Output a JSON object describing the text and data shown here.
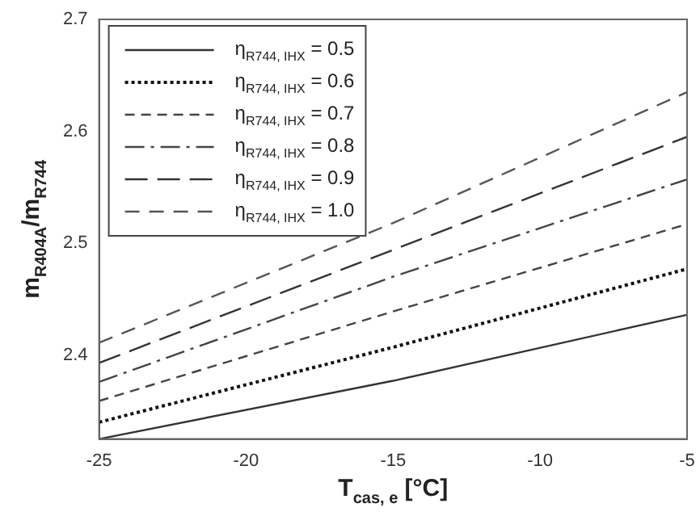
{
  "chart_data": {
    "type": "line",
    "xlabel": "T$_{cas, e}$ [°C]",
    "ylabel": "m$_{R404A}$/m$_{R744}$",
    "x": [
      -25,
      -15,
      -5
    ],
    "xlim": [
      -25,
      -5
    ],
    "xticks": [
      -25,
      -20,
      -15,
      -10,
      -5
    ],
    "ylim": [
      2.325,
      2.7
    ],
    "yticks": [
      2.4,
      2.5,
      2.6,
      2.7
    ],
    "grid": false,
    "legend": "top left",
    "marker": "none",
    "series": [
      {
        "name": "η$_{R744, IHX}$ = 0.5",
        "color": "#333333",
        "line_style": "solid",
        "values": [
          2.325,
          2.377,
          2.436
        ]
      },
      {
        "name": "η$_{R744, IHX}$ = 0.6",
        "color": "#111111",
        "line_style": "dotted",
        "values": [
          2.34,
          2.407,
          2.477
        ]
      },
      {
        "name": "η$_{R744, IHX}$ = 0.7",
        "color": "#444444",
        "line_style": "dashed",
        "values": [
          2.359,
          2.439,
          2.517
        ]
      },
      {
        "name": "η$_{R744, IHX}$ = 0.8",
        "color": "#444444",
        "line_style": "dashed",
        "values": [
          2.376,
          2.47,
          2.557
        ]
      },
      {
        "name": "η$_{R744, IHX}$ = 0.9",
        "color": "#333333",
        "line_style": "dashed",
        "values": [
          2.393,
          2.494,
          2.595
        ]
      },
      {
        "name": "η$_{R744, IHX}$ = 1.0",
        "color": "#555555",
        "line_style": "dashed",
        "values": [
          2.411,
          2.518,
          2.635
        ]
      }
    ]
  }
}
